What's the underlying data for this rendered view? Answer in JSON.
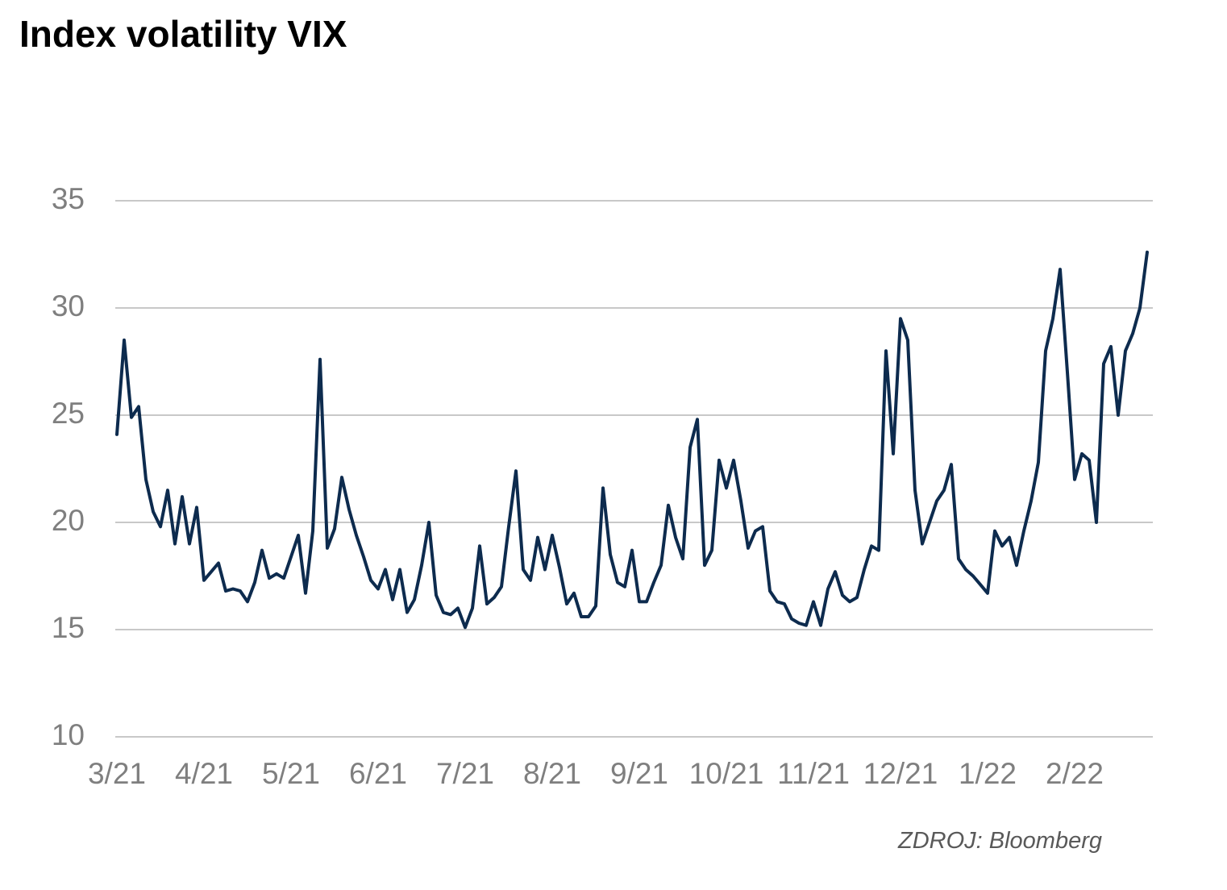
{
  "chart_data": {
    "type": "line",
    "title": "Index volatility VIX",
    "source": "ZDROJ: Bloomberg",
    "categories": [
      "3/21",
      null,
      null,
      null,
      null,
      null,
      null,
      null,
      null,
      null,
      null,
      null,
      "4/21",
      null,
      null,
      null,
      null,
      null,
      null,
      null,
      null,
      null,
      null,
      null,
      "5/21",
      null,
      null,
      null,
      null,
      null,
      null,
      null,
      null,
      null,
      null,
      null,
      "6/21",
      null,
      null,
      null,
      null,
      null,
      null,
      null,
      null,
      null,
      null,
      null,
      "7/21",
      null,
      null,
      null,
      null,
      null,
      null,
      null,
      null,
      null,
      null,
      null,
      "8/21",
      null,
      null,
      null,
      null,
      null,
      null,
      null,
      null,
      null,
      null,
      null,
      "9/21",
      null,
      null,
      null,
      null,
      null,
      null,
      null,
      null,
      null,
      null,
      null,
      "10/21",
      null,
      null,
      null,
      null,
      null,
      null,
      null,
      null,
      null,
      null,
      null,
      "11/21",
      null,
      null,
      null,
      null,
      null,
      null,
      null,
      null,
      null,
      null,
      null,
      "12/21",
      null,
      null,
      null,
      null,
      null,
      null,
      null,
      null,
      null,
      null,
      null,
      "1/22",
      null,
      null,
      null,
      null,
      null,
      null,
      null,
      null,
      null,
      null,
      null,
      "2/22",
      null,
      null,
      null,
      null,
      null,
      null,
      null,
      null,
      null,
      null
    ],
    "series": [
      {
        "name": "VIX",
        "color": "#0d2b4e",
        "values": [
          24.1,
          28.5,
          24.9,
          25.4,
          22.0,
          20.5,
          19.8,
          21.5,
          19.0,
          21.2,
          19.0,
          20.7,
          17.3,
          17.7,
          18.1,
          16.8,
          16.9,
          16.8,
          16.3,
          17.2,
          18.7,
          17.4,
          17.6,
          17.4,
          18.4,
          19.4,
          16.7,
          19.6,
          27.6,
          18.8,
          19.7,
          22.1,
          20.6,
          19.4,
          18.4,
          17.3,
          16.9,
          17.8,
          16.4,
          17.8,
          15.8,
          16.4,
          18.0,
          20.0,
          16.6,
          15.8,
          15.7,
          16.0,
          15.1,
          16.0,
          18.9,
          16.2,
          16.5,
          17.0,
          19.8,
          22.4,
          17.8,
          17.3,
          19.3,
          17.8,
          19.4,
          17.9,
          16.2,
          16.7,
          15.6,
          15.6,
          16.1,
          21.6,
          18.5,
          17.2,
          17.0,
          18.7,
          16.3,
          16.3,
          17.2,
          18.0,
          20.8,
          19.3,
          18.3,
          23.5,
          24.8,
          18.0,
          18.7,
          22.9,
          21.6,
          22.9,
          21.0,
          18.8,
          19.6,
          19.8,
          16.8,
          16.3,
          16.2,
          15.5,
          15.3,
          15.2,
          16.3,
          15.2,
          16.9,
          17.7,
          16.6,
          16.3,
          16.5,
          17.8,
          18.9,
          18.7,
          28.0,
          23.2,
          29.5,
          28.5,
          21.5,
          19.0,
          20.0,
          21.0,
          21.5,
          22.7,
          18.3,
          17.8,
          17.5,
          17.1,
          16.7,
          19.6,
          18.9,
          19.3,
          18.0,
          19.6,
          21.0,
          22.8,
          28.0,
          29.5,
          31.8,
          27.0,
          22.0,
          23.2,
          22.9,
          20.0,
          27.4,
          28.2,
          25.0,
          28.0,
          28.8,
          30.0,
          32.6
        ]
      }
    ],
    "ylim": [
      10,
      35
    ],
    "yticks": [
      10,
      15,
      20,
      25,
      30,
      35
    ],
    "grid": true
  }
}
